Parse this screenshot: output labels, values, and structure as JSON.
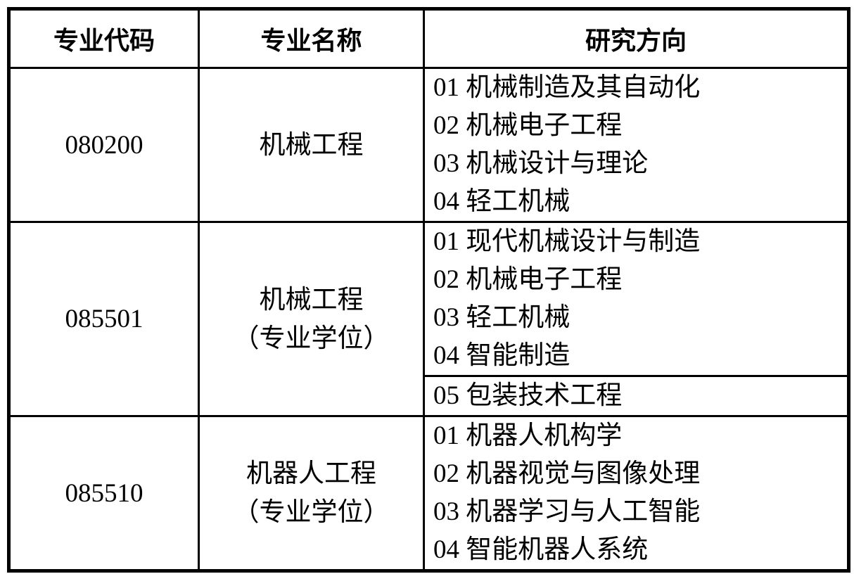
{
  "page": {
    "background": "#ffffff",
    "border_color": "#000000",
    "text_color": "#000000"
  },
  "table": {
    "headers": [
      "专业代码",
      "专业名称",
      "研究方向"
    ],
    "rows": [
      {
        "code": "080200",
        "name_lines": [
          "机械工程"
        ],
        "directions": [
          "01 机械制造及其自动化",
          "02 机械电子工程",
          "03 机械设计与理论",
          "04 轻工机械"
        ]
      },
      {
        "code": "085501",
        "name_lines": [
          "机械工程",
          "（专业学位）"
        ],
        "directions": [
          "01 现代机械设计与制造",
          "02 机械电子工程",
          "03 轻工机械",
          "04 智能制造"
        ],
        "extra_directions": [
          "05 包装技术工程"
        ]
      },
      {
        "code": "085510",
        "name_lines": [
          "机器人工程",
          "（专业学位）"
        ],
        "directions": [
          "01 机器人机构学",
          "02 机器视觉与图像处理",
          "03 机器学习与人工智能",
          "04 智能机器人系统"
        ]
      }
    ]
  }
}
